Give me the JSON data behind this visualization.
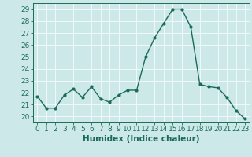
{
  "x": [
    0,
    1,
    2,
    3,
    4,
    5,
    6,
    7,
    8,
    9,
    10,
    11,
    12,
    13,
    14,
    15,
    16,
    17,
    18,
    19,
    20,
    21,
    22,
    23
  ],
  "y": [
    21.7,
    20.7,
    20.7,
    21.8,
    22.3,
    21.6,
    22.5,
    21.5,
    21.2,
    21.8,
    22.2,
    22.2,
    25.0,
    26.6,
    27.8,
    29.0,
    29.0,
    27.5,
    22.7,
    22.5,
    22.4,
    21.6,
    20.5,
    19.8
  ],
  "line_color": "#1a6b5a",
  "marker": "o",
  "marker_size": 2.0,
  "linewidth": 1.0,
  "bg_color": "#cce8e8",
  "grid_color": "#ffffff",
  "xlabel": "Humidex (Indice chaleur)",
  "ylim": [
    19.5,
    29.5
  ],
  "xlim": [
    -0.5,
    23.5
  ],
  "yticks": [
    20,
    21,
    22,
    23,
    24,
    25,
    26,
    27,
    28,
    29
  ],
  "xticks": [
    0,
    1,
    2,
    3,
    4,
    5,
    6,
    7,
    8,
    9,
    10,
    11,
    12,
    13,
    14,
    15,
    16,
    17,
    18,
    19,
    20,
    21,
    22,
    23
  ],
  "tick_fontsize": 6.5,
  "xlabel_fontsize": 7.5
}
